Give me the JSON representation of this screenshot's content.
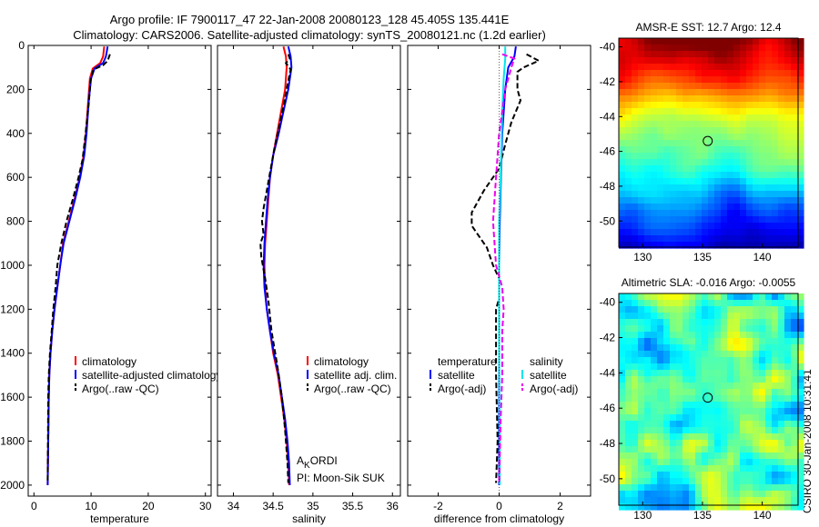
{
  "header": {
    "line1": "Argo profile: IF 7900117_47 22-Jan-2008 20080123_128 45.405S 135.441E",
    "line2": "Climatology: CARS2006. Satellite-adjusted climatology: synTS_20080121.nc (1.2d earlier)"
  },
  "side_label": "CSIRO 30-Jan-2008 10:31:41",
  "colors": {
    "climatology": "#ff0000",
    "satellite": "#0000ff",
    "argo": "#000000",
    "sal_satellite": "#00e5ee",
    "sal_argo": "#ee00ee"
  },
  "chart_data": [
    {
      "id": "temperature",
      "type": "line",
      "xlabel": "temperature",
      "ylabel": "",
      "xlim": [
        -1,
        31
      ],
      "ylim": [
        2050,
        0
      ],
      "xticks": [
        0,
        10,
        20,
        30
      ],
      "yticks": [
        0,
        200,
        400,
        600,
        800,
        1000,
        1200,
        1400,
        1600,
        1800,
        2000
      ],
      "legend": [
        "climatology",
        "satellite-adjusted climatology",
        "Argo(..raw -QC)"
      ],
      "series": [
        {
          "name": "climatology",
          "points": [
            [
              12.3,
              5
            ],
            [
              12.1,
              50
            ],
            [
              11.6,
              80
            ],
            [
              10.3,
              105
            ],
            [
              9.8,
              150
            ],
            [
              9.5,
              250
            ],
            [
              9.1,
              400
            ],
            [
              8.7,
              500
            ],
            [
              8,
              600
            ],
            [
              7.1,
              700
            ],
            [
              6.1,
              800
            ],
            [
              5.1,
              900
            ],
            [
              4.6,
              1000
            ],
            [
              4.1,
              1100
            ],
            [
              3.6,
              1200
            ],
            [
              3.2,
              1300
            ],
            [
              2.9,
              1400
            ],
            [
              2.7,
              1500
            ],
            [
              2.6,
              1600
            ],
            [
              2.5,
              1800
            ],
            [
              2.4,
              2000
            ]
          ]
        },
        {
          "name": "satellite",
          "points": [
            [
              12.9,
              5
            ],
            [
              12.6,
              50
            ],
            [
              12.1,
              80
            ],
            [
              10.6,
              105
            ],
            [
              10,
              150
            ],
            [
              9.6,
              250
            ],
            [
              9.2,
              400
            ],
            [
              8.8,
              500
            ],
            [
              8.1,
              600
            ],
            [
              7.2,
              700
            ],
            [
              6.2,
              800
            ],
            [
              5.2,
              900
            ],
            [
              4.6,
              1000
            ],
            [
              4.1,
              1100
            ],
            [
              3.6,
              1200
            ],
            [
              3.2,
              1300
            ],
            [
              2.9,
              1400
            ],
            [
              2.7,
              1500
            ],
            [
              2.6,
              1600
            ],
            [
              2.5,
              1800
            ],
            [
              2.4,
              2000
            ]
          ]
        },
        {
          "name": "argo",
          "points": [
            [
              13.3,
              40
            ],
            [
              12.9,
              70
            ],
            [
              12.1,
              90
            ],
            [
              10.4,
              110
            ],
            [
              9.9,
              160
            ],
            [
              9.6,
              260
            ],
            [
              9,
              410
            ],
            [
              8.5,
              520
            ],
            [
              7.8,
              600
            ],
            [
              6.8,
              700
            ],
            [
              5.7,
              800
            ],
            [
              4.8,
              900
            ],
            [
              4.1,
              1000
            ],
            [
              3.8,
              1100
            ],
            [
              3.4,
              1200
            ],
            [
              3.1,
              1300
            ],
            [
              2.8,
              1400
            ],
            [
              2.6,
              1500
            ],
            [
              2.5,
              1600
            ],
            [
              2.45,
              1800
            ],
            [
              2.4,
              1980
            ]
          ]
        }
      ]
    },
    {
      "id": "salinity",
      "type": "line",
      "xlabel": "salinity",
      "ylabel": "",
      "xlim": [
        33.8,
        36.1
      ],
      "ylim": [
        2050,
        0
      ],
      "xticks": [
        34,
        34.5,
        35,
        35.5,
        36
      ],
      "yticks": [],
      "legend": [
        "climatology",
        "satellite adj. clim.",
        "Argo(..raw -QC)"
      ],
      "annotation": {
        "main": "A",
        "sub": "K",
        "rest": "ORDI",
        "pi": "PI: Moon-Sik SUK"
      },
      "series": [
        {
          "name": "climatology",
          "points": [
            [
              34.63,
              5
            ],
            [
              34.66,
              50
            ],
            [
              34.67,
              100
            ],
            [
              34.65,
              200
            ],
            [
              34.6,
              300
            ],
            [
              34.55,
              400
            ],
            [
              34.5,
              500
            ],
            [
              34.46,
              600
            ],
            [
              34.44,
              700
            ],
            [
              34.42,
              800
            ],
            [
              34.4,
              900
            ],
            [
              34.39,
              1000
            ],
            [
              34.4,
              1100
            ],
            [
              34.42,
              1200
            ],
            [
              34.46,
              1300
            ],
            [
              34.5,
              1400
            ],
            [
              34.56,
              1500
            ],
            [
              34.6,
              1600
            ],
            [
              34.64,
              1700
            ],
            [
              34.67,
              1800
            ],
            [
              34.69,
              1900
            ],
            [
              34.7,
              2000
            ]
          ]
        },
        {
          "name": "satellite",
          "points": [
            [
              34.69,
              5
            ],
            [
              34.72,
              50
            ],
            [
              34.73,
              100
            ],
            [
              34.69,
              200
            ],
            [
              34.63,
              300
            ],
            [
              34.57,
              400
            ],
            [
              34.5,
              500
            ],
            [
              34.46,
              600
            ],
            [
              34.43,
              700
            ],
            [
              34.41,
              800
            ],
            [
              34.39,
              900
            ],
            [
              34.38,
              1000
            ],
            [
              34.39,
              1100
            ],
            [
              34.42,
              1200
            ],
            [
              34.46,
              1300
            ],
            [
              34.51,
              1400
            ],
            [
              34.57,
              1500
            ],
            [
              34.61,
              1600
            ],
            [
              34.65,
              1700
            ],
            [
              34.68,
              1800
            ],
            [
              34.7,
              1900
            ],
            [
              34.71,
              2000
            ]
          ]
        },
        {
          "name": "argo",
          "points": [
            [
              34.69,
              40
            ],
            [
              34.71,
              60
            ],
            [
              34.66,
              80
            ],
            [
              34.72,
              110
            ],
            [
              34.69,
              160
            ],
            [
              34.64,
              260
            ],
            [
              34.57,
              380
            ],
            [
              34.52,
              460
            ],
            [
              34.48,
              540
            ],
            [
              34.45,
              600
            ],
            [
              34.42,
              660
            ],
            [
              34.38,
              740
            ],
            [
              34.36,
              800
            ],
            [
              34.38,
              860
            ],
            [
              34.34,
              900
            ],
            [
              34.35,
              960
            ],
            [
              34.37,
              1000
            ],
            [
              34.4,
              1060
            ],
            [
              34.44,
              1160
            ],
            [
              34.48,
              1300
            ],
            [
              34.55,
              1450
            ],
            [
              34.61,
              1600
            ],
            [
              34.65,
              1750
            ],
            [
              34.68,
              1900
            ],
            [
              34.69,
              1990
            ]
          ]
        }
      ]
    },
    {
      "id": "difference",
      "type": "line",
      "xlabel": "difference from climatology",
      "ylabel": "",
      "xlim": [
        -3,
        3
      ],
      "ylim": [
        2050,
        0
      ],
      "xticks": [
        -2,
        0,
        2
      ],
      "yticks": [],
      "legend_left_title": "temperature",
      "legend_right_title": "salinity",
      "legend_left": [
        "satellite",
        "Argo(-adj)"
      ],
      "legend_right": [
        "satellite",
        "Argo(-adj)"
      ],
      "series": [
        {
          "name": "temp_satellite",
          "points": [
            [
              0.55,
              5
            ],
            [
              0.5,
              50
            ],
            [
              0.3,
              100
            ],
            [
              0.2,
              200
            ],
            [
              0.1,
              400
            ],
            [
              0.06,
              600
            ],
            [
              0.02,
              800
            ],
            [
              0,
              1000
            ],
            [
              0,
              1500
            ],
            [
              0,
              2000
            ]
          ]
        },
        {
          "name": "temp_argo",
          "points": [
            [
              0.9,
              40
            ],
            [
              1.3,
              70
            ],
            [
              0.8,
              100
            ],
            [
              0.6,
              120
            ],
            [
              0.6,
              200
            ],
            [
              0.7,
              250
            ],
            [
              0.4,
              350
            ],
            [
              0.2,
              450
            ],
            [
              0,
              560
            ],
            [
              -0.5,
              660
            ],
            [
              -0.9,
              760
            ],
            [
              -0.9,
              820
            ],
            [
              -0.4,
              920
            ],
            [
              -0.2,
              1000
            ],
            [
              0,
              1060
            ],
            [
              0,
              1150
            ],
            [
              -0.1,
              1200
            ],
            [
              -0.1,
              1500
            ],
            [
              -0.05,
              1800
            ],
            [
              -0.1,
              1990
            ]
          ]
        },
        {
          "name": "sal_satellite",
          "points": [
            [
              0.2,
              5
            ],
            [
              0.2,
              60
            ],
            [
              0.15,
              150
            ],
            [
              0.1,
              300
            ],
            [
              0.05,
              600
            ],
            [
              0,
              800
            ],
            [
              0,
              1000
            ],
            [
              0,
              1400
            ],
            [
              0.02,
              1800
            ],
            [
              0.02,
              2000
            ]
          ]
        },
        {
          "name": "sal_argo",
          "points": [
            [
              0.1,
              40
            ],
            [
              0.5,
              60
            ],
            [
              0.4,
              100
            ],
            [
              0.2,
              200
            ],
            [
              0.1,
              300
            ],
            [
              0,
              400
            ],
            [
              -0.1,
              600
            ],
            [
              -0.2,
              800
            ],
            [
              -0.1,
              1000
            ],
            [
              0.1,
              1100
            ],
            [
              0.15,
              1200
            ],
            [
              0.1,
              1300
            ],
            [
              0.1,
              1500
            ],
            [
              0.05,
              1700
            ],
            [
              0,
              1990
            ]
          ]
        }
      ]
    },
    {
      "id": "sst_map",
      "type": "heatmap",
      "title": "AMSR-E SST: 12.7 Argo: 12.4",
      "xlim": [
        128,
        143
      ],
      "ylim": [
        -51.5,
        -39.5
      ],
      "xticks": [
        130,
        135,
        140
      ],
      "yticks": [
        -40,
        -42,
        -44,
        -46,
        -48,
        -50
      ],
      "marker": [
        135.441,
        -45.405
      ]
    },
    {
      "id": "sla_map",
      "type": "heatmap",
      "title": "Altimetric SLA: -0.016 Argo: -0.0055",
      "xlim": [
        128,
        143
      ],
      "ylim": [
        -51.5,
        -39.5
      ],
      "xticks": [
        130,
        135,
        140
      ],
      "yticks": [
        -40,
        -42,
        -44,
        -46,
        -48,
        -50
      ],
      "marker": [
        135.441,
        -45.405
      ]
    }
  ]
}
